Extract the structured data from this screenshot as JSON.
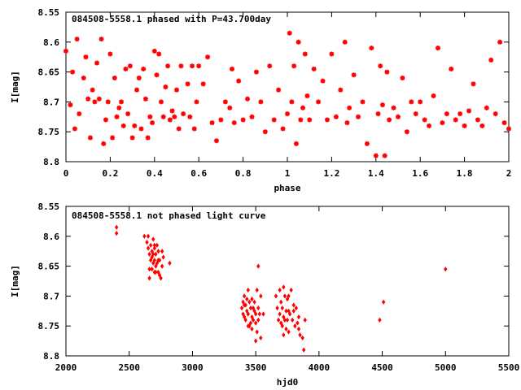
{
  "chart_data": [
    {
      "type": "scatter",
      "title": "084508-5558.1 phased with P=43.700day",
      "xlabel": "phase",
      "ylabel": "I[mag]",
      "xlim": [
        0,
        2
      ],
      "ylim": [
        8.8,
        8.55
      ],
      "y_reversed": true,
      "grid": false,
      "marker_color": "#ff0000",
      "x_ticks": [
        "0",
        "0.2",
        "0.4",
        "0.6",
        "0.8",
        "1",
        "1.2",
        "1.4",
        "1.6",
        "1.8",
        "2"
      ],
      "y_ticks": [
        "8.55",
        "8.6",
        "8.65",
        "8.7",
        "8.75",
        "8.8"
      ],
      "series": [
        {
          "x": [
            0.0,
            0.02,
            0.03,
            0.04,
            0.05,
            0.06,
            0.08,
            0.09,
            0.1,
            0.11,
            0.12,
            0.13,
            0.14,
            0.15,
            0.16,
            0.17,
            0.18,
            0.19,
            0.2,
            0.21,
            0.22,
            0.23,
            0.24,
            0.25,
            0.26,
            0.27,
            0.28,
            0.29,
            0.3,
            0.31,
            0.32,
            0.33,
            0.34,
            0.35,
            0.36,
            0.37,
            0.38,
            0.39,
            0.4,
            0.41,
            0.42,
            0.43,
            0.44,
            0.45,
            0.46,
            0.47,
            0.48,
            0.49,
            0.5,
            0.51,
            0.52,
            0.53,
            0.55,
            0.56,
            0.57,
            0.58,
            0.59,
            0.6,
            0.62,
            0.64,
            0.66,
            0.68,
            0.7,
            0.72,
            0.74,
            0.75,
            0.76,
            0.78,
            0.8,
            0.82,
            0.84,
            0.86,
            0.88,
            0.9,
            0.92,
            0.94,
            0.96,
            0.98,
            1.0,
            1.01,
            1.02,
            1.03,
            1.04,
            1.05,
            1.06,
            1.07,
            1.08,
            1.09,
            1.1,
            1.12,
            1.14,
            1.16,
            1.18,
            1.2,
            1.22,
            1.24,
            1.26,
            1.27,
            1.28,
            1.3,
            1.32,
            1.34,
            1.36,
            1.38,
            1.4,
            1.41,
            1.42,
            1.43,
            1.44,
            1.45,
            1.46,
            1.48,
            1.5,
            1.52,
            1.54,
            1.56,
            1.58,
            1.6,
            1.62,
            1.64,
            1.66,
            1.68,
            1.7,
            1.72,
            1.74,
            1.76,
            1.78,
            1.8,
            1.82,
            1.84,
            1.86,
            1.88,
            1.9,
            1.92,
            1.94,
            1.96,
            1.98,
            2.0
          ],
          "y": [
            8.615,
            8.705,
            8.65,
            8.745,
            8.595,
            8.72,
            8.66,
            8.625,
            8.695,
            8.76,
            8.68,
            8.7,
            8.635,
            8.695,
            8.595,
            8.77,
            8.73,
            8.7,
            8.62,
            8.76,
            8.66,
            8.725,
            8.71,
            8.7,
            8.74,
            8.645,
            8.72,
            8.64,
            8.76,
            8.74,
            8.68,
            8.66,
            8.745,
            8.645,
            8.695,
            8.76,
            8.725,
            8.735,
            8.615,
            8.655,
            8.62,
            8.7,
            8.725,
            8.675,
            8.64,
            8.73,
            8.715,
            8.725,
            8.68,
            8.745,
            8.64,
            8.72,
            8.67,
            8.725,
            8.64,
            8.745,
            8.7,
            8.64,
            8.67,
            8.625,
            8.735,
            8.765,
            8.73,
            8.7,
            8.71,
            8.645,
            8.735,
            8.665,
            8.73,
            8.695,
            8.725,
            8.65,
            8.7,
            8.75,
            8.64,
            8.73,
            8.68,
            8.745,
            8.72,
            8.585,
            8.7,
            8.64,
            8.77,
            8.6,
            8.73,
            8.71,
            8.62,
            8.69,
            8.73,
            8.645,
            8.7,
            8.665,
            8.73,
            8.62,
            8.725,
            8.68,
            8.6,
            8.735,
            8.71,
            8.655,
            8.725,
            8.7,
            8.77,
            8.61,
            8.79,
            8.72,
            8.64,
            8.705,
            8.79,
            8.65,
            8.73,
            8.71,
            8.725,
            8.66,
            8.75,
            8.7,
            8.72,
            8.7,
            8.73,
            8.74,
            8.69,
            8.61,
            8.735,
            8.72,
            8.645,
            8.73,
            8.72,
            8.74,
            8.715,
            8.67,
            8.73,
            8.74,
            8.71,
            8.63,
            8.72,
            8.6,
            8.735,
            8.745
          ]
        }
      ]
    },
    {
      "type": "scatter",
      "title": "084508-5558.1 not phased light curve",
      "xlabel": "hjd0",
      "ylabel": "I[mag]",
      "xlim": [
        2000,
        5500
      ],
      "ylim": [
        8.8,
        8.55
      ],
      "y_reversed": true,
      "grid": false,
      "marker_color": "#ff0000",
      "x_ticks": [
        "2000",
        "2500",
        "3000",
        "3500",
        "4000",
        "4500",
        "5000",
        "5500"
      ],
      "y_ticks": [
        "8.55",
        "8.6",
        "8.65",
        "8.7",
        "8.75",
        "8.8"
      ],
      "series": [
        {
          "x": [
            2400,
            2400,
            2620,
            2640,
            2650,
            2660,
            2660,
            2670,
            2670,
            2680,
            2680,
            2690,
            2690,
            2700,
            2700,
            2700,
            2710,
            2710,
            2720,
            2720,
            2730,
            2730,
            2740,
            2740,
            2750,
            2760,
            2760,
            2770,
            2820,
            2650,
            2660,
            2680,
            2700,
            2710,
            2730,
            2690,
            3390,
            3400,
            3400,
            3410,
            3410,
            3420,
            3420,
            3430,
            3430,
            3440,
            3440,
            3450,
            3450,
            3460,
            3460,
            3470,
            3470,
            3480,
            3480,
            3490,
            3490,
            3500,
            3500,
            3510,
            3510,
            3520,
            3520,
            3530,
            3540,
            3560,
            3410,
            3440,
            3470,
            3500,
            3520,
            3540,
            3660,
            3670,
            3680,
            3690,
            3690,
            3700,
            3700,
            3710,
            3710,
            3720,
            3720,
            3730,
            3730,
            3740,
            3740,
            3750,
            3750,
            3760,
            3760,
            3770,
            3780,
            3790,
            3800,
            3810,
            3820,
            3830,
            3840,
            3850,
            3870,
            3880,
            3890,
            3720,
            3760,
            3800,
            3840,
            4480,
            4510,
            5000
          ],
          "y": [
            8.585,
            8.595,
            8.6,
            8.61,
            8.62,
            8.63,
            8.67,
            8.615,
            8.64,
            8.625,
            8.655,
            8.605,
            8.645,
            8.62,
            8.64,
            8.66,
            8.63,
            8.65,
            8.615,
            8.645,
            8.625,
            8.66,
            8.64,
            8.665,
            8.67,
            8.625,
            8.65,
            8.635,
            8.645,
            8.6,
            8.655,
            8.635,
            8.615,
            8.66,
            8.64,
            8.63,
            8.72,
            8.71,
            8.73,
            8.7,
            8.735,
            8.715,
            8.74,
            8.705,
            8.725,
            8.69,
            8.73,
            8.71,
            8.75,
            8.72,
            8.745,
            8.705,
            8.735,
            8.72,
            8.74,
            8.71,
            8.725,
            8.745,
            8.73,
            8.69,
            8.76,
            8.72,
            8.74,
            8.73,
            8.7,
            8.73,
            8.715,
            8.75,
            8.755,
            8.775,
            8.65,
            8.77,
            8.7,
            8.72,
            8.74,
            8.69,
            8.73,
            8.71,
            8.745,
            8.72,
            8.75,
            8.735,
            8.765,
            8.7,
            8.74,
            8.725,
            8.755,
            8.705,
            8.74,
            8.725,
            8.76,
            8.73,
            8.69,
            8.74,
            8.725,
            8.75,
            8.72,
            8.745,
            8.735,
            8.765,
            8.77,
            8.79,
            8.74,
            8.685,
            8.7,
            8.715,
            8.755,
            8.74,
            8.71,
            8.655
          ]
        }
      ]
    }
  ]
}
